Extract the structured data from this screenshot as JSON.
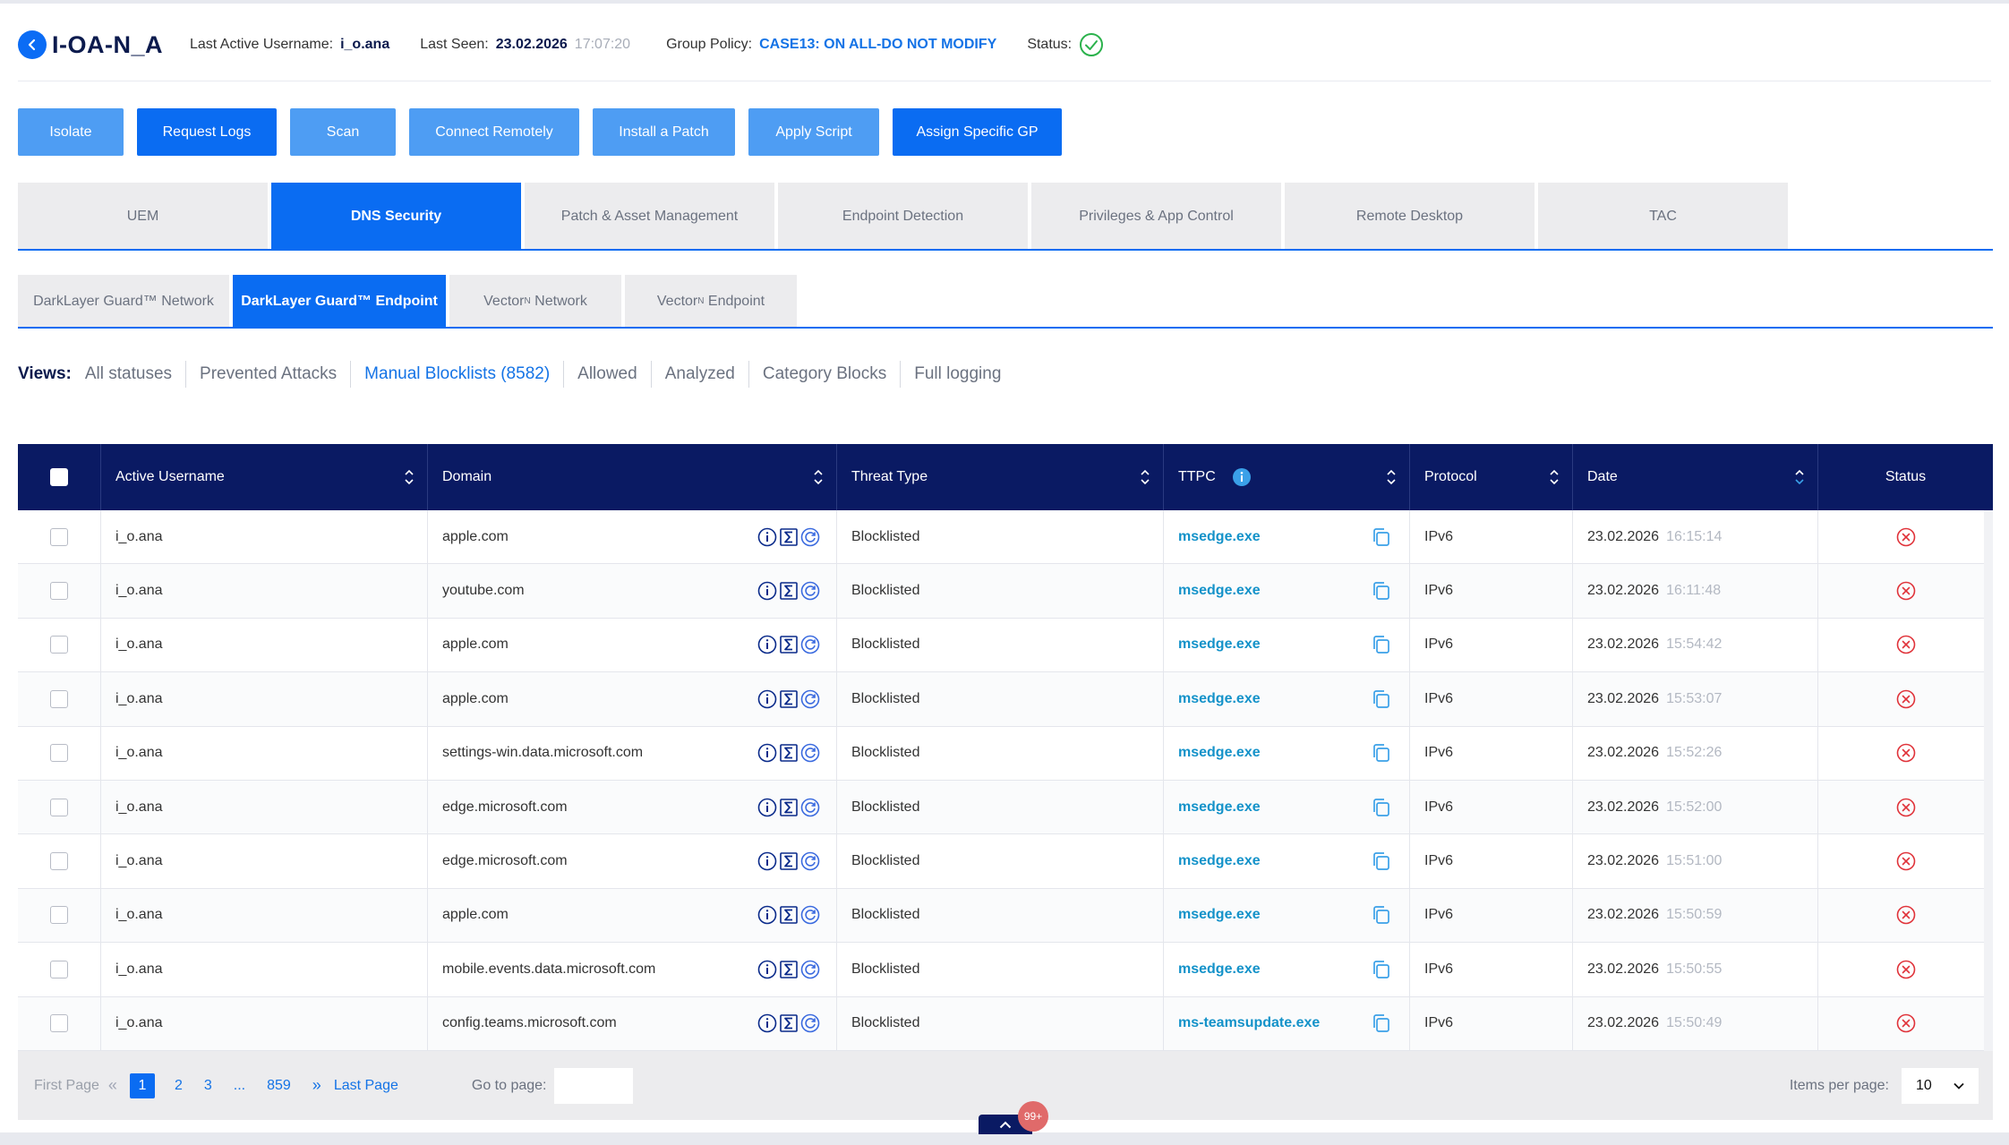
{
  "header": {
    "device_name": "I-OA-N_A",
    "last_user_label": "Last Active Username:",
    "last_user_value": "i_o.ana",
    "last_seen_label": "Last Seen:",
    "last_seen_date": "23.02.2026",
    "last_seen_time": "17:07:20",
    "policy_label": "Group Policy:",
    "policy_value": "CASE13: ON ALL-DO NOT MODIFY",
    "status_label": "Status:"
  },
  "actions": [
    {
      "label": "Isolate"
    },
    {
      "label": "Request Logs"
    },
    {
      "label": "Scan"
    },
    {
      "label": "Connect Remotely"
    },
    {
      "label": "Install a Patch"
    },
    {
      "label": "Apply Script"
    },
    {
      "label": "Assign Specific GP"
    }
  ],
  "main_tabs": [
    {
      "label": "UEM"
    },
    {
      "label": "DNS Security"
    },
    {
      "label": "Patch & Asset Management"
    },
    {
      "label": "Endpoint Detection"
    },
    {
      "label": "Privileges & App Control"
    },
    {
      "label": "Remote Desktop"
    },
    {
      "label": "TAC"
    }
  ],
  "sub_tabs": [
    {
      "label": "DarkLayer Guard™ Network"
    },
    {
      "label": "DarkLayer Guard™ Endpoint"
    },
    {
      "label": "Vector",
      "sup": "N",
      "suffix": " Network"
    },
    {
      "label": "Vector",
      "sup": "N",
      "suffix": " Endpoint"
    }
  ],
  "views": {
    "label": "Views:",
    "items": [
      {
        "label": "All statuses"
      },
      {
        "label": "Prevented Attacks"
      },
      {
        "label": "Manual Blocklists (8582)"
      },
      {
        "label": "Allowed"
      },
      {
        "label": "Analyzed"
      },
      {
        "label": "Category Blocks"
      },
      {
        "label": "Full logging"
      }
    ]
  },
  "table": {
    "headers": {
      "user": "Active Username",
      "domain": "Domain",
      "threat": "Threat Type",
      "ttpc": "TTPC",
      "protocol": "Protocol",
      "date": "Date",
      "status": "Status"
    },
    "rows": [
      {
        "user": "i_o.ana",
        "domain": "apple.com",
        "threat": "Blocklisted",
        "ttpc": "msedge.exe",
        "protocol": "IPv6",
        "date": "23.02.2026",
        "time": "16:15:14"
      },
      {
        "user": "i_o.ana",
        "domain": "youtube.com",
        "threat": "Blocklisted",
        "ttpc": "msedge.exe",
        "protocol": "IPv6",
        "date": "23.02.2026",
        "time": "16:11:48"
      },
      {
        "user": "i_o.ana",
        "domain": "apple.com",
        "threat": "Blocklisted",
        "ttpc": "msedge.exe",
        "protocol": "IPv6",
        "date": "23.02.2026",
        "time": "15:54:42"
      },
      {
        "user": "i_o.ana",
        "domain": "apple.com",
        "threat": "Blocklisted",
        "ttpc": "msedge.exe",
        "protocol": "IPv6",
        "date": "23.02.2026",
        "time": "15:53:07"
      },
      {
        "user": "i_o.ana",
        "domain": "settings-win.data.microsoft.com",
        "threat": "Blocklisted",
        "ttpc": "msedge.exe",
        "protocol": "IPv6",
        "date": "23.02.2026",
        "time": "15:52:26"
      },
      {
        "user": "i_o.ana",
        "domain": "edge.microsoft.com",
        "threat": "Blocklisted",
        "ttpc": "msedge.exe",
        "protocol": "IPv6",
        "date": "23.02.2026",
        "time": "15:52:00"
      },
      {
        "user": "i_o.ana",
        "domain": "edge.microsoft.com",
        "threat": "Blocklisted",
        "ttpc": "msedge.exe",
        "protocol": "IPv6",
        "date": "23.02.2026",
        "time": "15:51:00"
      },
      {
        "user": "i_o.ana",
        "domain": "apple.com",
        "threat": "Blocklisted",
        "ttpc": "msedge.exe",
        "protocol": "IPv6",
        "date": "23.02.2026",
        "time": "15:50:59"
      },
      {
        "user": "i_o.ana",
        "domain": "mobile.events.data.microsoft.com",
        "threat": "Blocklisted",
        "ttpc": "msedge.exe",
        "protocol": "IPv6",
        "date": "23.02.2026",
        "time": "15:50:55"
      },
      {
        "user": "i_o.ana",
        "domain": "config.teams.microsoft.com",
        "threat": "Blocklisted",
        "ttpc": "ms-teamsupdate.exe",
        "protocol": "IPv6",
        "date": "23.02.2026",
        "time": "15:50:49"
      }
    ]
  },
  "pagination": {
    "first_label": "First Page",
    "pages": [
      "1",
      "2",
      "3",
      "...",
      "859"
    ],
    "last_label": "Last Page",
    "goto_label": "Go to page:",
    "items_label": "Items per page:",
    "items_value": "10"
  },
  "notifications": {
    "count": "99+"
  },
  "colors": {
    "accent": "#0a6cf2",
    "header_bg": "#0a1a63",
    "danger": "#e0333a",
    "success": "#2bb24c",
    "link": "#1392c9"
  }
}
